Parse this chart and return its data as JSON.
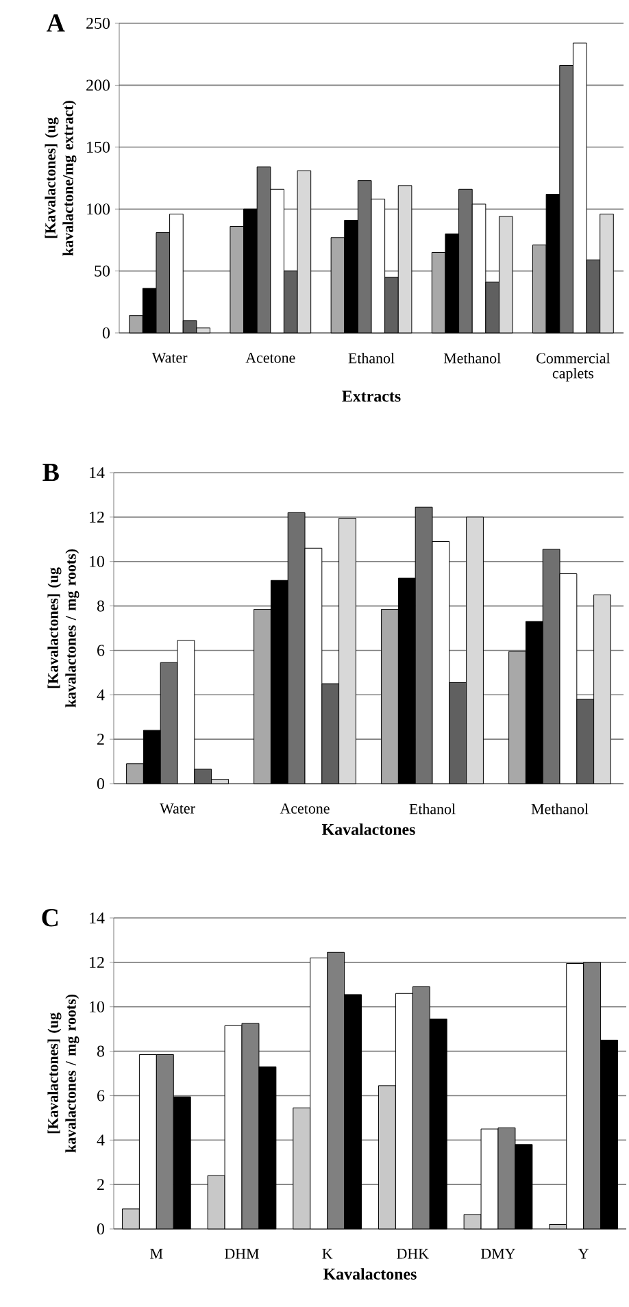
{
  "chart_data": [
    {
      "type": "bar",
      "title": "A",
      "xlabel": "Extracts",
      "ylabel": "[Kavalactones] (ug kavalactone/mg extract)",
      "categories": [
        "Water",
        "Acetone",
        "Ethanol",
        "Methanol",
        "Commercial caplets"
      ],
      "ylim": [
        0,
        250
      ],
      "yticks": [
        0,
        50,
        100,
        150,
        200,
        250
      ],
      "grid": "y",
      "series": [
        {
          "color": "#a8a8a8",
          "values": [
            14,
            86,
            77,
            65,
            71
          ]
        },
        {
          "color": "#000000",
          "values": [
            36,
            100,
            91,
            80,
            112
          ]
        },
        {
          "color": "#707070",
          "values": [
            81,
            134,
            123,
            116,
            216
          ]
        },
        {
          "color": "#ffffff",
          "values": [
            96,
            116,
            108,
            104,
            234
          ]
        },
        {
          "color": "#606060",
          "values": [
            10,
            50,
            45,
            41,
            59
          ]
        },
        {
          "color": "#d8d8d8",
          "values": [
            4,
            131,
            119,
            94,
            96
          ]
        }
      ]
    },
    {
      "type": "bar",
      "title": "B",
      "xlabel": "Kavalactones",
      "ylabel": "[Kavalactones] (ug kavalactones / mg roots)",
      "categories": [
        "Water",
        "Acetone",
        "Ethanol",
        "Methanol"
      ],
      "ylim": [
        0,
        14
      ],
      "yticks": [
        0,
        2,
        4,
        6,
        8,
        10,
        12,
        14
      ],
      "grid": "y",
      "series": [
        {
          "color": "#a8a8a8",
          "values": [
            0.9,
            7.85,
            7.85,
            5.95
          ]
        },
        {
          "color": "#000000",
          "values": [
            2.4,
            9.15,
            9.25,
            7.3
          ]
        },
        {
          "color": "#707070",
          "values": [
            5.45,
            12.2,
            12.45,
            10.55
          ]
        },
        {
          "color": "#ffffff",
          "values": [
            6.45,
            10.6,
            10.9,
            9.45
          ]
        },
        {
          "color": "#606060",
          "values": [
            0.65,
            4.5,
            4.55,
            3.8
          ]
        },
        {
          "color": "#d8d8d8",
          "values": [
            0.2,
            11.95,
            12.0,
            8.5
          ]
        }
      ]
    },
    {
      "type": "bar",
      "title": "C",
      "xlabel": "Kavalactones",
      "ylabel": "[Kavalactones] (ug kavalactones / mg roots)",
      "categories": [
        "M",
        "DHM",
        "K",
        "DHK",
        "DMY",
        "Y"
      ],
      "ylim": [
        0,
        14
      ],
      "yticks": [
        0,
        2,
        4,
        6,
        8,
        10,
        12,
        14
      ],
      "grid": "y",
      "series": [
        {
          "color": "#c8c8c8",
          "values": [
            0.9,
            2.4,
            5.45,
            6.45,
            0.65,
            0.2
          ]
        },
        {
          "color": "#ffffff",
          "values": [
            7.85,
            9.15,
            12.2,
            10.6,
            4.5,
            11.95
          ]
        },
        {
          "color": "#808080",
          "values": [
            7.85,
            9.25,
            12.45,
            10.9,
            4.55,
            12.0
          ]
        },
        {
          "color": "#000000",
          "values": [
            5.95,
            7.3,
            10.55,
            9.45,
            3.8,
            8.5
          ]
        }
      ]
    }
  ]
}
